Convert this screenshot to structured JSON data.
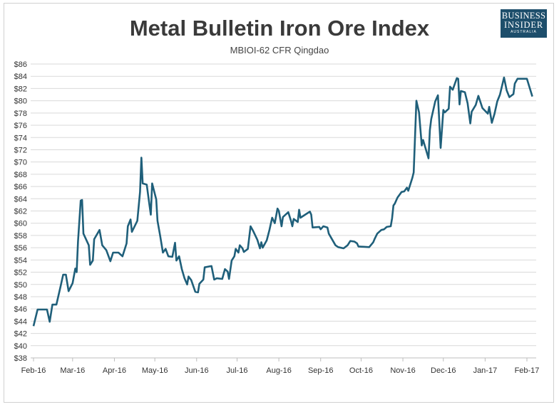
{
  "logo": {
    "line1": "BUSINESS",
    "line2": "INSIDER",
    "line3": "AUSTRALIA"
  },
  "chart_data": {
    "type": "line",
    "title": "Metal Bulletin Iron Ore Index",
    "subtitle": "MBIOI-62 CFR Qingdao",
    "xlabel": "",
    "ylabel": "",
    "ylim": [
      38,
      86
    ],
    "xlim": [
      "2016-02-01",
      "2017-02-07"
    ],
    "grid": true,
    "line_color": "#1f5f7a",
    "y_ticks": [
      "$38",
      "$40",
      "$42",
      "$44",
      "$46",
      "$48",
      "$50",
      "$52",
      "$54",
      "$56",
      "$58",
      "$60",
      "$62",
      "$64",
      "$66",
      "$68",
      "$70",
      "$72",
      "$74",
      "$76",
      "$78",
      "$80",
      "$82",
      "$84",
      "$86"
    ],
    "x_ticks": [
      {
        "label": "Feb-16",
        "date": "2016-02-01"
      },
      {
        "label": "Mar-16",
        "date": "2016-03-01"
      },
      {
        "label": "Apr-16",
        "date": "2016-04-01"
      },
      {
        "label": "May-16",
        "date": "2016-05-01"
      },
      {
        "label": "Jun-16",
        "date": "2016-06-01"
      },
      {
        "label": "Jul-16",
        "date": "2016-07-01"
      },
      {
        "label": "Aug-16",
        "date": "2016-08-01"
      },
      {
        "label": "Sep-16",
        "date": "2016-09-01"
      },
      {
        "label": "Oct-16",
        "date": "2016-10-01"
      },
      {
        "label": "Nov-16",
        "date": "2016-11-01"
      },
      {
        "label": "Dec-16",
        "date": "2016-12-01"
      },
      {
        "label": "Jan-17",
        "date": "2017-01-01"
      },
      {
        "label": "Feb-17",
        "date": "2017-02-01"
      }
    ],
    "series": [
      {
        "x": [
          "2016-02-01",
          "2016-02-04",
          "2016-02-11",
          "2016-02-13",
          "2016-02-15",
          "2016-02-18",
          "2016-02-21",
          "2016-02-23",
          "2016-02-25",
          "2016-02-27",
          "2016-03-01",
          "2016-03-03",
          "2016-03-04",
          "2016-03-05",
          "2016-03-07",
          "2016-03-08",
          "2016-03-09",
          "2016-03-13",
          "2016-03-14",
          "2016-03-16",
          "2016-03-17",
          "2016-03-21",
          "2016-03-23",
          "2016-03-26",
          "2016-03-29",
          "2016-03-31",
          "2016-04-04",
          "2016-04-07",
          "2016-04-10",
          "2016-04-11",
          "2016-04-13",
          "2016-04-14",
          "2016-04-18",
          "2016-04-20",
          "2016-04-21",
          "2016-04-22",
          "2016-04-25",
          "2016-04-27",
          "2016-04-28",
          "2016-04-29",
          "2016-05-02",
          "2016-05-03",
          "2016-05-05",
          "2016-05-07",
          "2016-05-09",
          "2016-05-11",
          "2016-05-14",
          "2016-05-16",
          "2016-05-17",
          "2016-05-19",
          "2016-05-21",
          "2016-05-23",
          "2016-05-25",
          "2016-05-26",
          "2016-05-28",
          "2016-05-31",
          "2016-06-02",
          "2016-06-03",
          "2016-06-06",
          "2016-06-07",
          "2016-06-12",
          "2016-06-14",
          "2016-06-16",
          "2016-06-20",
          "2016-06-22",
          "2016-06-24",
          "2016-06-25",
          "2016-06-27",
          "2016-06-29",
          "2016-06-30",
          "2016-07-02",
          "2016-07-03",
          "2016-07-05",
          "2016-07-06",
          "2016-07-09",
          "2016-07-11",
          "2016-07-13",
          "2016-07-16",
          "2016-07-18",
          "2016-07-19",
          "2016-07-20",
          "2016-07-23",
          "2016-07-25",
          "2016-07-27",
          "2016-07-29",
          "2016-07-31",
          "2016-08-01",
          "2016-08-03",
          "2016-08-04",
          "2016-08-08",
          "2016-08-10",
          "2016-08-11",
          "2016-08-12",
          "2016-08-15",
          "2016-08-16",
          "2016-08-17",
          "2016-08-22",
          "2016-08-24",
          "2016-08-25",
          "2016-08-26",
          "2016-08-31",
          "2016-09-01",
          "2016-09-03",
          "2016-09-06",
          "2016-09-07",
          "2016-09-12",
          "2016-09-14",
          "2016-09-18",
          "2016-09-21",
          "2016-09-23",
          "2016-09-26",
          "2016-09-28",
          "2016-09-29",
          "2016-10-07",
          "2016-10-10",
          "2016-10-11",
          "2016-10-13",
          "2016-10-16",
          "2016-10-18",
          "2016-10-20",
          "2016-10-23",
          "2016-10-24",
          "2016-10-25",
          "2016-10-26",
          "2016-10-28",
          "2016-10-31",
          "2016-11-02",
          "2016-11-04",
          "2016-11-05",
          "2016-11-08",
          "2016-11-09",
          "2016-11-11",
          "2016-11-13",
          "2016-11-15",
          "2016-11-16",
          "2016-11-20",
          "2016-11-21",
          "2016-11-22",
          "2016-11-25",
          "2016-11-27",
          "2016-11-29",
          "2016-12-01",
          "2016-12-02",
          "2016-12-05",
          "2016-12-06",
          "2016-12-08",
          "2016-12-11",
          "2016-12-12",
          "2016-12-13",
          "2016-12-14",
          "2016-12-17",
          "2016-12-19",
          "2016-12-21",
          "2016-12-22",
          "2016-12-25",
          "2016-12-27",
          "2016-12-30",
          "2017-01-03",
          "2017-01-04",
          "2017-01-06",
          "2017-01-08",
          "2017-01-10",
          "2017-01-12",
          "2017-01-15",
          "2017-01-17",
          "2017-01-19",
          "2017-01-22",
          "2017-01-23",
          "2017-01-25",
          "2017-02-01",
          "2017-02-05"
        ],
        "y": [
          43.2,
          45.9,
          45.9,
          43.9,
          46.7,
          46.7,
          49.6,
          51.6,
          51.6,
          48.9,
          50.2,
          52.6,
          52.0,
          57.0,
          63.7,
          63.8,
          58.3,
          56.4,
          53.2,
          53.9,
          57.4,
          58.9,
          56.4,
          55.6,
          53.8,
          55.2,
          55.2,
          54.6,
          56.7,
          59.5,
          60.6,
          58.6,
          60.4,
          65.1,
          70.7,
          66.5,
          66.3,
          63.0,
          61.4,
          66.5,
          63.9,
          60.4,
          57.9,
          55.2,
          55.8,
          54.6,
          54.5,
          56.8,
          53.9,
          54.6,
          52.5,
          51.0,
          50.0,
          51.3,
          50.7,
          48.8,
          48.7,
          50.1,
          50.8,
          52.8,
          53.0,
          50.8,
          51.0,
          50.9,
          52.5,
          52.1,
          50.9,
          53.9,
          54.6,
          55.8,
          55.2,
          56.4,
          55.9,
          55.3,
          55.8,
          59.5,
          58.7,
          57.3,
          55.9,
          56.9,
          56.0,
          57.2,
          58.9,
          60.9,
          60.0,
          62.4,
          62.0,
          59.5,
          61.0,
          61.8,
          60.4,
          59.5,
          60.7,
          60.2,
          62.2,
          60.9,
          61.6,
          61.9,
          61.4,
          59.3,
          59.4,
          59.0,
          59.5,
          59.3,
          58.3,
          56.4,
          56.1,
          55.9,
          56.4,
          57.1,
          57.0,
          56.7,
          56.2,
          56.1,
          56.9,
          57.4,
          58.3,
          58.9,
          59.0,
          59.4,
          59.5,
          60.8,
          62.9,
          63.2,
          64.2,
          65.1,
          65.2,
          65.8,
          65.3,
          67.4,
          68.3,
          80.0,
          78.1,
          72.7,
          73.6,
          70.6,
          75.2,
          77.0,
          79.9,
          80.9,
          72.3,
          78.5,
          78.1,
          78.7,
          82.3,
          81.8,
          83.7,
          83.6,
          79.4,
          81.6,
          81.4,
          79.6,
          76.3,
          78.2,
          79.3,
          80.8,
          78.8,
          77.9,
          79.0,
          76.4,
          77.9,
          79.9,
          81.0,
          83.8,
          81.7,
          80.6,
          81.1,
          82.8,
          83.6,
          83.6,
          80.7
        ]
      }
    ]
  }
}
